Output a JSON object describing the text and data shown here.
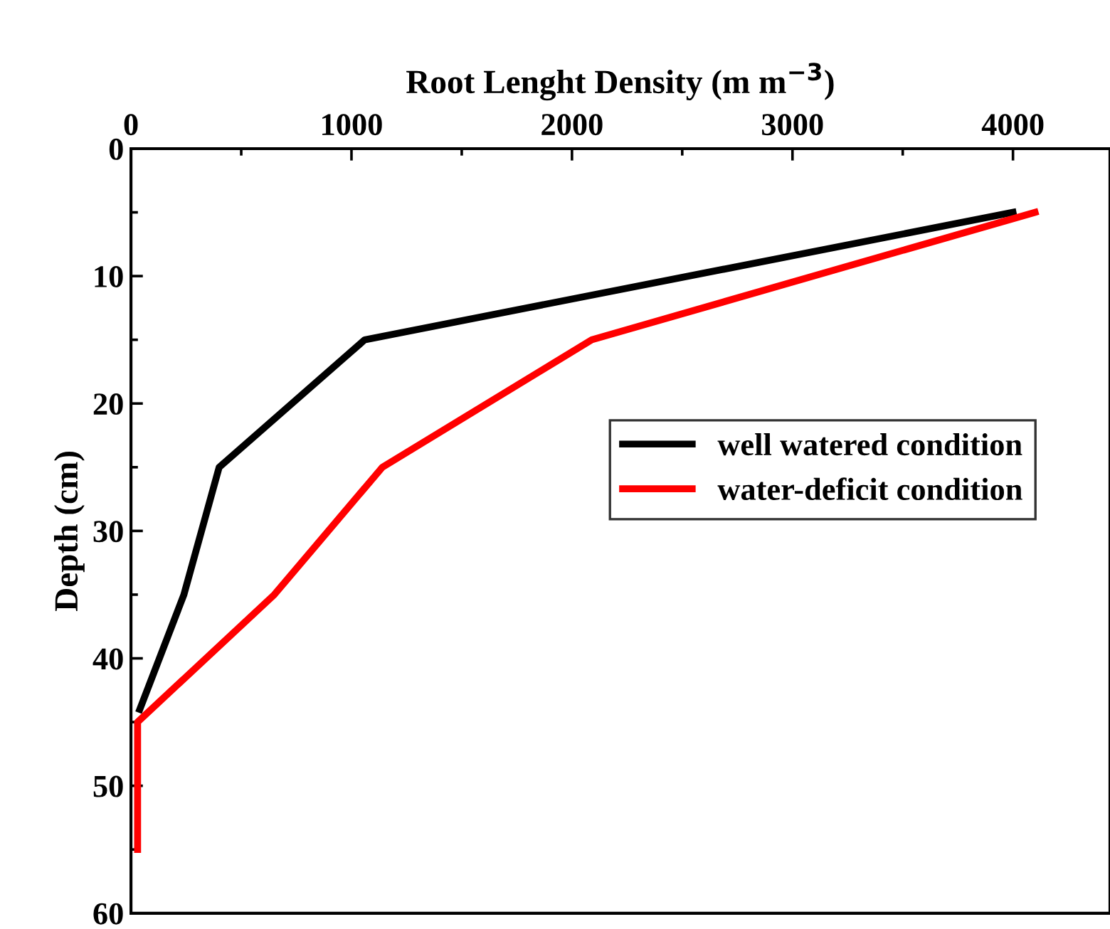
{
  "chart_data": {
    "type": "line",
    "xlabel": "Root Lenght Density (m m$^{−3}$)",
    "ylabel": "Depth (cm)",
    "xlim": [
      0,
      4440
    ],
    "xticks": [
      0,
      1000,
      2000,
      3000,
      4000
    ],
    "ylim": [
      60,
      0
    ],
    "yticks": [
      0,
      10,
      20,
      30,
      40,
      50,
      60
    ],
    "grid": false,
    "legend": "right",
    "marker": "none",
    "line_style": "solid",
    "series": [
      {
        "name": "well watered condition",
        "color": "#000000",
        "x": [
          4000,
          1060,
          400,
          240,
          40
        ],
        "values": [
          5,
          15,
          25,
          35,
          44
        ]
      },
      {
        "name": "water-deficit condition",
        "color": "#ff0000",
        "x": [
          4100,
          2090,
          1140,
          650,
          30,
          30
        ],
        "values": [
          5,
          15,
          25,
          35,
          45,
          55
        ]
      }
    ]
  }
}
